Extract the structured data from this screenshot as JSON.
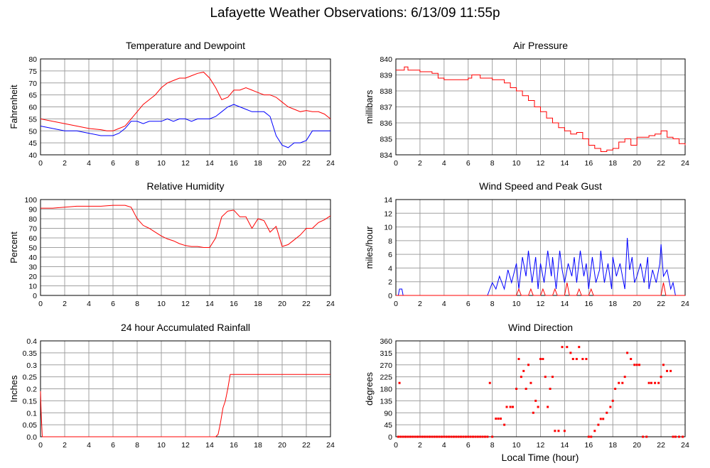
{
  "page_title": "Lafayette Weather Observations: 6/13/09 11:55p",
  "colors": {
    "red": "#ff0000",
    "blue": "#0000ff",
    "grid": "#a0a0a0",
    "frame": "#000000"
  },
  "x_axis_label": "Local Time (hour)",
  "chart_data": [
    {
      "id": "temp",
      "type": "line",
      "title": "Temperature and Dewpoint",
      "ylabel": "Fahrenheit",
      "xlim": [
        0,
        24
      ],
      "ylim": [
        40,
        80
      ],
      "xticks": [
        "0",
        "2",
        "4",
        "6",
        "8",
        "10",
        "12",
        "14",
        "16",
        "18",
        "20",
        "22",
        "24"
      ],
      "yticks": [
        "40",
        "45",
        "50",
        "55",
        "60",
        "65",
        "70",
        "75",
        "80"
      ],
      "grid": true,
      "series": [
        {
          "color": "#ff0000",
          "x": [
            0,
            1,
            2,
            3,
            4,
            5,
            5.5,
            6,
            6.5,
            7,
            7.5,
            8,
            8.5,
            9,
            9.5,
            10,
            10.5,
            11,
            11.5,
            12,
            12.5,
            13,
            13.5,
            14,
            14.5,
            15,
            15.5,
            16,
            16.5,
            17,
            17.5,
            18,
            18.5,
            19,
            19.5,
            20,
            20.5,
            21,
            21.5,
            22,
            22.5,
            23,
            23.5,
            24
          ],
          "y": [
            55,
            54,
            53,
            52,
            51,
            50.5,
            50,
            50,
            51,
            52,
            55,
            58,
            61,
            63,
            65,
            68,
            70,
            71,
            72,
            72,
            73,
            74,
            74.5,
            72,
            68,
            63,
            64,
            67,
            67,
            68,
            67,
            66,
            65,
            65,
            64,
            62,
            60,
            59,
            58,
            58.5,
            58,
            58,
            57,
            55
          ]
        },
        {
          "color": "#0000ff",
          "x": [
            0,
            1,
            2,
            3,
            4,
            5,
            6,
            6.5,
            7,
            7.5,
            8,
            8.5,
            9,
            9.5,
            10,
            10.5,
            11,
            11.5,
            12,
            12.5,
            13,
            13.5,
            14,
            14.5,
            15,
            15.5,
            16,
            16.5,
            17,
            17.5,
            18,
            18.5,
            19,
            19.5,
            20,
            20.5,
            21,
            21.5,
            22,
            22.5,
            23,
            23.5,
            24
          ],
          "y": [
            52,
            51,
            50,
            50,
            49,
            48,
            48,
            49,
            51,
            54,
            54,
            53,
            54,
            54,
            54,
            55,
            54,
            55,
            55,
            54,
            55,
            55,
            55,
            56,
            58,
            60,
            61,
            60,
            59,
            58,
            58,
            58,
            56,
            48,
            44,
            43,
            45,
            45,
            46,
            50,
            50,
            50,
            50
          ]
        }
      ]
    },
    {
      "id": "pressure",
      "type": "line",
      "title": "Air Pressure",
      "ylabel": "millibars",
      "xlim": [
        0,
        24
      ],
      "ylim": [
        834,
        840
      ],
      "xticks": [
        "0",
        "2",
        "4",
        "6",
        "8",
        "10",
        "12",
        "14",
        "16",
        "18",
        "20",
        "22",
        "24"
      ],
      "yticks": [
        "834",
        "835",
        "836",
        "837",
        "838",
        "839",
        "840"
      ],
      "grid": true,
      "series": [
        {
          "color": "#ff0000",
          "step": true,
          "x": [
            0,
            0.7,
            1,
            2,
            3,
            3.5,
            4,
            5,
            6,
            6.3,
            7,
            8,
            8.5,
            9,
            9.5,
            10,
            10.5,
            11,
            11.5,
            12,
            12.5,
            13,
            13.5,
            14,
            14.5,
            15,
            15.5,
            16,
            16.5,
            17,
            17.5,
            18,
            18.5,
            19,
            19.5,
            20,
            20.5,
            21,
            21.5,
            22,
            22.5,
            23,
            23.5,
            24
          ],
          "y": [
            839.3,
            839.5,
            839.3,
            839.2,
            839.1,
            838.8,
            838.7,
            838.7,
            838.8,
            839.0,
            838.8,
            838.7,
            838.7,
            838.5,
            838.2,
            838.0,
            837.7,
            837.4,
            837.0,
            836.7,
            836.3,
            836.0,
            835.7,
            835.5,
            835.3,
            835.4,
            835.0,
            834.6,
            834.4,
            834.2,
            834.3,
            834.4,
            834.8,
            835.0,
            834.6,
            835.1,
            835.1,
            835.2,
            835.3,
            835.5,
            835.1,
            835.0,
            834.7,
            834.6
          ]
        }
      ]
    },
    {
      "id": "humidity",
      "type": "line",
      "title": "Relative Humidity",
      "ylabel": "Percent",
      "xlim": [
        0,
        24
      ],
      "ylim": [
        0,
        100
      ],
      "xticks": [
        "0",
        "2",
        "4",
        "6",
        "8",
        "10",
        "12",
        "14",
        "16",
        "18",
        "20",
        "22",
        "24"
      ],
      "yticks": [
        "0",
        "10",
        "20",
        "30",
        "40",
        "50",
        "60",
        "70",
        "80",
        "90",
        "100"
      ],
      "grid": true,
      "series": [
        {
          "color": "#ff0000",
          "x": [
            0,
            1,
            2,
            3,
            4,
            5,
            6,
            7,
            7.5,
            8,
            8.5,
            9,
            9.5,
            10,
            10.5,
            11,
            11.5,
            12,
            12.5,
            13,
            13.5,
            14,
            14.5,
            15,
            15.5,
            16,
            16.5,
            17,
            17.5,
            18,
            18.5,
            19,
            19.5,
            20,
            20.5,
            21,
            21.5,
            22,
            22.5,
            23,
            23.5,
            24
          ],
          "y": [
            91,
            91,
            92,
            93,
            93,
            93,
            94,
            94,
            92,
            80,
            73,
            70,
            66,
            62,
            59,
            57,
            54,
            52,
            51,
            51,
            50,
            50,
            60,
            82,
            88,
            89,
            82,
            82,
            70,
            80,
            78,
            66,
            72,
            51,
            53,
            58,
            63,
            70,
            70,
            76,
            79,
            83
          ]
        }
      ]
    },
    {
      "id": "wind",
      "type": "line",
      "title": "Wind Speed and Peak Gust",
      "ylabel": "miles/hour",
      "xlim": [
        0,
        24
      ],
      "ylim": [
        0,
        15
      ],
      "xticks": [
        "0",
        "2",
        "4",
        "6",
        "8",
        "10",
        "12",
        "14",
        "16",
        "18",
        "20",
        "22",
        "24"
      ],
      "yticks": [
        "0",
        "2",
        "4",
        "6",
        "8",
        "10",
        "12",
        "14"
      ],
      "grid": true,
      "series": [
        {
          "color": "#0000ff",
          "x": [
            0,
            0.2,
            0.3,
            0.5,
            0.6,
            1,
            7.6,
            7.8,
            8,
            8.3,
            8.6,
            9,
            9.3,
            9.6,
            10,
            10.2,
            10.5,
            10.8,
            11,
            11.3,
            11.6,
            11.8,
            12,
            12.3,
            12.6,
            12.9,
            13,
            13.3,
            13.6,
            13.8,
            14,
            14.3,
            14.6,
            14.8,
            15,
            15.3,
            15.6,
            15.8,
            16,
            16.3,
            16.6,
            16.9,
            17,
            17.3,
            17.6,
            17.9,
            18,
            18.3,
            18.6,
            18.9,
            19,
            19.2,
            19.4,
            19.6,
            19.8,
            20,
            20.3,
            20.6,
            20.9,
            21,
            21.3,
            21.6,
            21.9,
            22,
            22.2,
            22.5,
            22.8,
            23,
            23.2,
            24
          ],
          "y": [
            0,
            0,
            1,
            1,
            0,
            0,
            0,
            1,
            2,
            1,
            3,
            1,
            4,
            2,
            5,
            1,
            6,
            3,
            7,
            2,
            6,
            1,
            5,
            2,
            7,
            3,
            6,
            1,
            7,
            4,
            2,
            5,
            3,
            6,
            2,
            7,
            3,
            5,
            1,
            6,
            2,
            4,
            7,
            2,
            5,
            1,
            6,
            3,
            5,
            2,
            1,
            9,
            4,
            6,
            2,
            3,
            5,
            2,
            6,
            1,
            4,
            2,
            5,
            8,
            3,
            4,
            1,
            2,
            0,
            0
          ]
        },
        {
          "color": "#ff0000",
          "x": [
            0,
            10,
            10.2,
            10.4,
            11,
            11.2,
            11.4,
            12,
            12.2,
            12.4,
            13,
            13.2,
            13.4,
            14,
            14.2,
            14.4,
            15,
            15.2,
            15.4,
            16,
            16.2,
            16.4,
            22,
            22.2,
            22.4,
            24
          ],
          "y": [
            0,
            0,
            1,
            0,
            0,
            1,
            0,
            0,
            1,
            0,
            0,
            1,
            0,
            0,
            2,
            0,
            0,
            1,
            0,
            0,
            1,
            0,
            0,
            2,
            0,
            0
          ]
        }
      ]
    },
    {
      "id": "rain",
      "type": "line",
      "title": "24 hour Accumulated Rainfall",
      "ylabel": "Inches",
      "xlim": [
        0,
        24
      ],
      "ylim": [
        0,
        0.4
      ],
      "xticks": [
        "0",
        "2",
        "4",
        "6",
        "8",
        "10",
        "12",
        "14",
        "16",
        "18",
        "20",
        "22",
        "24"
      ],
      "yticks": [
        "0.0",
        "0.05",
        "0.1",
        "0.15",
        "0.2",
        "0.25",
        "0.3",
        "0.35",
        "0.4"
      ],
      "grid": true,
      "series": [
        {
          "color": "#ff0000",
          "x": [
            0,
            0.05,
            0.15,
            14.5,
            14.7,
            14.9,
            15.1,
            15.3,
            15.5,
            15.7,
            24
          ],
          "y": [
            0.19,
            0.1,
            0,
            0,
            0.01,
            0.06,
            0.12,
            0.15,
            0.2,
            0.26,
            0.26
          ]
        }
      ]
    },
    {
      "id": "direction",
      "type": "scatter",
      "title": "Wind Direction",
      "ylabel": "degrees",
      "xlim": [
        0,
        24
      ],
      "ylim": [
        0,
        360
      ],
      "xticks": [
        "0",
        "2",
        "4",
        "6",
        "8",
        "10",
        "12",
        "14",
        "16",
        "18",
        "20",
        "22",
        "24"
      ],
      "yticks": [
        "0",
        "45",
        "90",
        "135",
        "180",
        "225",
        "270",
        "315",
        "360"
      ],
      "grid": true,
      "series": [
        {
          "color": "#ff0000",
          "x": [
            0.2,
            0.4,
            0.6,
            0.8,
            1,
            1.2,
            1.4,
            1.6,
            1.8,
            2,
            2.2,
            2.4,
            2.6,
            2.8,
            3,
            3.2,
            3.4,
            3.6,
            3.8,
            4,
            4.2,
            4.4,
            4.6,
            4.8,
            5,
            5.2,
            5.4,
            5.6,
            5.8,
            6,
            6.2,
            6.4,
            6.6,
            6.8,
            7,
            7.2,
            7.4,
            7.6,
            0.3,
            7.8,
            8,
            8.3,
            8.5,
            8.7,
            9,
            9.2,
            9.5,
            9.7,
            10,
            10.2,
            10.4,
            10.6,
            10.8,
            11,
            11.2,
            11.4,
            11.6,
            11.8,
            12,
            12.2,
            12.4,
            12.6,
            12.8,
            13,
            13.2,
            13.5,
            13.8,
            14,
            14.2,
            14.5,
            14.7,
            15,
            15.2,
            15.5,
            15.8,
            16,
            16.2,
            16.5,
            16.8,
            17,
            17.2,
            17.5,
            17.8,
            18,
            18.2,
            18.5,
            18.8,
            19,
            19.2,
            19.5,
            19.8,
            20,
            20.2,
            20.5,
            20.8,
            21,
            21.2,
            21.5,
            21.8,
            22,
            22.2,
            22.5,
            22.8,
            23,
            23.2,
            23.5,
            23.8
          ],
          "y": [
            0,
            0,
            0,
            0,
            0,
            0,
            0,
            0,
            0,
            0,
            0,
            0,
            0,
            0,
            0,
            0,
            0,
            0,
            0,
            0,
            0,
            0,
            0,
            0,
            0,
            0,
            0,
            0,
            0,
            0,
            0,
            0,
            0,
            0,
            0,
            0,
            0,
            0,
            202,
            202,
            0,
            68,
            68,
            68,
            45,
            112,
            112,
            112,
            180,
            292,
            225,
            247,
            180,
            270,
            202,
            90,
            135,
            112,
            292,
            292,
            225,
            112,
            180,
            225,
            22,
            22,
            337,
            22,
            337,
            315,
            292,
            292,
            337,
            292,
            292,
            0,
            0,
            22,
            45,
            67,
            67,
            90,
            112,
            135,
            180,
            202,
            202,
            225,
            315,
            292,
            270,
            270,
            270,
            0,
            0,
            202,
            202,
            202,
            202,
            225,
            270,
            247,
            247,
            0,
            0,
            0,
            0
          ]
        }
      ]
    }
  ]
}
